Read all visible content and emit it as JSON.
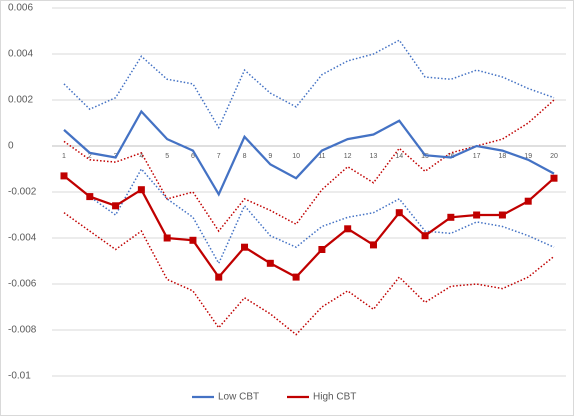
{
  "chart_data": {
    "type": "line",
    "categories": [
      "1",
      "2",
      "3",
      "4",
      "5",
      "6",
      "7",
      "8",
      "9",
      "10",
      "11",
      "12",
      "13",
      "14",
      "15",
      "16",
      "17",
      "18",
      "19",
      "20"
    ],
    "series": [
      {
        "name": "Low CBT",
        "color": "#4472c4",
        "values": [
          0.0007,
          -0.0003,
          -0.0005,
          0.0015,
          0.0003,
          -0.0002,
          -0.0021,
          0.0004,
          -0.0008,
          -0.0014,
          -0.0002,
          0.0003,
          0.0005,
          0.0011,
          -0.0004,
          -0.0005,
          0.0,
          -0.0002,
          -0.0006,
          -0.0012
        ],
        "upper": [
          0.0027,
          0.0016,
          0.0021,
          0.0039,
          0.0029,
          0.0027,
          0.0008,
          0.0033,
          0.0023,
          0.0017,
          0.0031,
          0.0037,
          0.004,
          0.0046,
          0.003,
          0.0029,
          0.0033,
          0.003,
          0.0025,
          0.0021
        ],
        "lower": [
          -0.0013,
          -0.0022,
          -0.003,
          -0.001,
          -0.0023,
          -0.0031,
          -0.0051,
          -0.0026,
          -0.0039,
          -0.0044,
          -0.0035,
          -0.0031,
          -0.0029,
          -0.0023,
          -0.0037,
          -0.0038,
          -0.0033,
          -0.0035,
          -0.0039,
          -0.0044
        ]
      },
      {
        "name": "High CBT",
        "color": "#c00000",
        "marker": "square",
        "values": [
          -0.0013,
          -0.0022,
          -0.0026,
          -0.0019,
          -0.004,
          -0.0041,
          -0.0057,
          -0.0044,
          -0.0051,
          -0.0057,
          -0.0045,
          -0.0036,
          -0.0043,
          -0.0029,
          -0.0039,
          -0.0031,
          -0.003,
          -0.003,
          -0.0024,
          -0.0014
        ],
        "upper": [
          0.0002,
          -0.0006,
          -0.0007,
          -0.0003,
          -0.0023,
          -0.002,
          -0.0037,
          -0.0023,
          -0.0028,
          -0.0034,
          -0.0019,
          -0.0009,
          -0.0016,
          -0.0001,
          -0.0011,
          -0.0003,
          0.0,
          0.0003,
          0.001,
          0.002
        ],
        "lower": [
          -0.0029,
          -0.0037,
          -0.0045,
          -0.0037,
          -0.0058,
          -0.0063,
          -0.0079,
          -0.0066,
          -0.0073,
          -0.0082,
          -0.007,
          -0.0063,
          -0.0071,
          -0.0057,
          -0.0068,
          -0.0061,
          -0.006,
          -0.0062,
          -0.0057,
          -0.0048
        ]
      }
    ],
    "ylim": [
      -0.01,
      0.006
    ],
    "yticks": [
      -0.01,
      -0.008,
      -0.006,
      -0.004,
      -0.002,
      0,
      0.002,
      0.004,
      0.006
    ],
    "grid": true,
    "legend": "bottom"
  }
}
